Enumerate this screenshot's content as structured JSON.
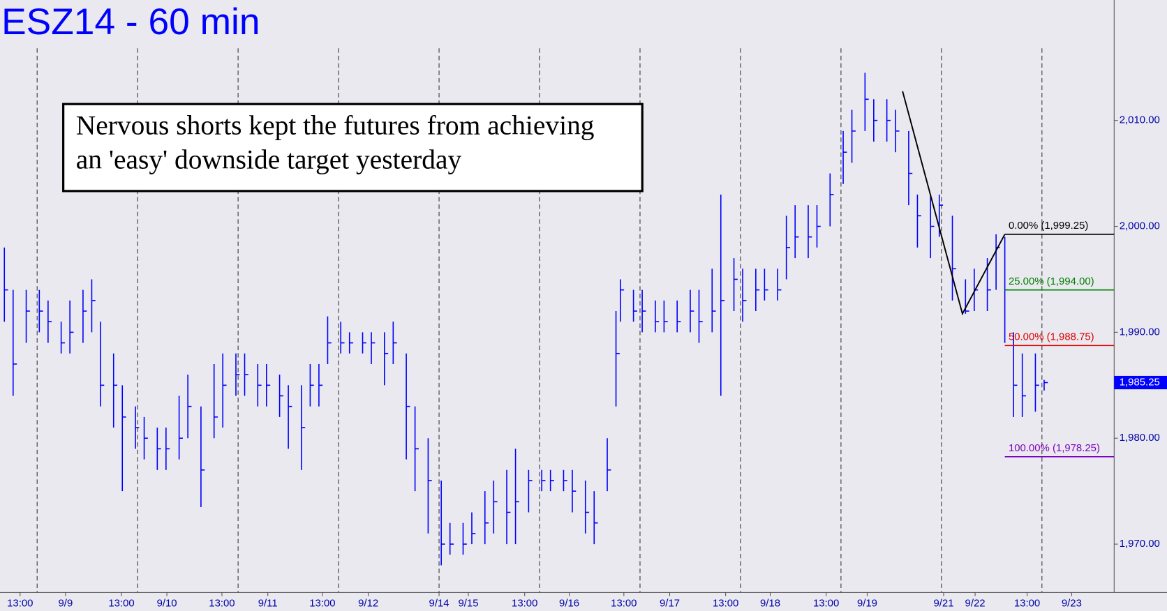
{
  "chart_data": {
    "type": "ohlc",
    "title": "ESZ14 - 60 min",
    "annotation": [
      "Nervous shorts kept the futures from achieving",
      "an 'easy' downside target yesterday"
    ],
    "color": "#0000ff",
    "xlim": [
      0,
      255.03
    ],
    "ylim": [
      1965.44,
      2021.37
    ],
    "yticks": [
      {
        "value": 1970,
        "label": "1,970.00"
      },
      {
        "value": 1980,
        "label": "1,980.00"
      },
      {
        "value": 1990,
        "label": "1,990.00"
      },
      {
        "value": 2000,
        "label": "2,000.00"
      },
      {
        "value": 2010,
        "label": "2,010.00"
      }
    ],
    "xticks": [
      {
        "value": 4.6,
        "label": "13:00"
      },
      {
        "value": 15,
        "label": "9/9"
      },
      {
        "value": 27.8,
        "label": "13:00"
      },
      {
        "value": 38.2,
        "label": "9/10"
      },
      {
        "value": 50.8,
        "label": "13:00"
      },
      {
        "value": 61.3,
        "label": "9/11"
      },
      {
        "value": 73.8,
        "label": "13:00"
      },
      {
        "value": 84.3,
        "label": "9/12"
      },
      {
        "value": 100.5,
        "label": "9/14"
      },
      {
        "value": 107.2,
        "label": "9/15"
      },
      {
        "value": 120.1,
        "label": "13:00"
      },
      {
        "value": 130.3,
        "label": "9/16"
      },
      {
        "value": 142.8,
        "label": "13:00"
      },
      {
        "value": 153.3,
        "label": "9/17"
      },
      {
        "value": 166.1,
        "label": "13:00"
      },
      {
        "value": 176.3,
        "label": "9/18"
      },
      {
        "value": 189.1,
        "label": "13:00"
      },
      {
        "value": 198.5,
        "label": "9/19"
      },
      {
        "value": 216,
        "label": "9/21"
      },
      {
        "value": 223.2,
        "label": "9/22"
      },
      {
        "value": 235.1,
        "label": "13:00"
      },
      {
        "value": 245.3,
        "label": "9/23"
      }
    ],
    "xgrid": [
      8.5,
      31.5,
      54.5,
      77.5,
      100.5,
      123.5,
      146.5,
      169.5,
      192.5,
      215.5,
      238.5
    ],
    "x": [
      1,
      3,
      6,
      9,
      11,
      14,
      16,
      19,
      21,
      23,
      26,
      28,
      31,
      33,
      36,
      38,
      41,
      43,
      46,
      49,
      51,
      54,
      56,
      59,
      61,
      64,
      66,
      69,
      71,
      73,
      75,
      78,
      80,
      83,
      85,
      88,
      90,
      93,
      95,
      98,
      101,
      103,
      106,
      108,
      111,
      113,
      116,
      118,
      121,
      124,
      126,
      129,
      131,
      134,
      136,
      139,
      141,
      142,
      145,
      147,
      150,
      152,
      155,
      158,
      160,
      163,
      165,
      168,
      170,
      173,
      175,
      178,
      180,
      182,
      185,
      187,
      190,
      193,
      195,
      198,
      200,
      203,
      205,
      208,
      210,
      213,
      215,
      218,
      221,
      223,
      226,
      228,
      230,
      232,
      234,
      237,
      239
    ],
    "high": [
      1998,
      1994,
      1994,
      1994,
      1993,
      1991,
      1993,
      1994,
      1995,
      1991,
      1988,
      1985,
      1983,
      1982,
      1981,
      1981,
      1984,
      1986,
      1983,
      1987,
      1988,
      1988,
      1988,
      1987,
      1987,
      1986,
      1985,
      1985,
      1987,
      1987,
      1991.5,
      1991,
      1990,
      1990,
      1990,
      1990,
      1991,
      1988,
      1983,
      1980,
      1976,
      1972,
      1972,
      1973,
      1975,
      1976,
      1977,
      1979,
      1977,
      1977,
      1977,
      1977,
      1977,
      1976,
      1975,
      1980,
      1992,
      1995,
      1994,
      1994,
      1993,
      1993,
      1993,
      1994,
      1994,
      1996,
      2003,
      1997,
      1996,
      1996,
      1996,
      1996,
      2001,
      2002,
      2002,
      2002,
      2005,
      2009,
      2011,
      2014.5,
      2012,
      2012,
      2011,
      2009,
      2003,
      2003,
      2003,
      2001,
      1995,
      1996,
      1997,
      1999.25,
      1999,
      1990,
      1988,
      1988,
      1985.5
    ],
    "low": [
      1991,
      1984,
      1989,
      1990,
      1989,
      1988,
      1988,
      1989,
      1990,
      1983,
      1981,
      1975,
      1979,
      1978,
      1977,
      1977,
      1978,
      1980,
      1973.5,
      1980,
      1981,
      1984,
      1984,
      1983,
      1983,
      1982,
      1979,
      1977,
      1983,
      1983,
      1987,
      1988,
      1988,
      1988,
      1987,
      1985,
      1987,
      1978,
      1975,
      1971,
      1968,
      1969,
      1969,
      1970,
      1970,
      1971,
      1970,
      1970,
      1973,
      1975,
      1975,
      1975,
      1973,
      1971,
      1970,
      1975,
      1983,
      1991,
      1991,
      1990,
      1990,
      1990,
      1990,
      1990,
      1989,
      1990,
      1984,
      1992,
      1991,
      1992,
      1993,
      1993,
      1995,
      1997,
      1997,
      1998,
      2000,
      2004,
      2006,
      2009,
      2008,
      2008,
      2007,
      2002,
      1998,
      1997,
      1999,
      1993,
      1991.75,
      1992,
      1992,
      1994,
      1989,
      1982,
      1982,
      1982.5,
      1984.5
    ],
    "close": [
      1994,
      1987,
      1992,
      1992,
      1991,
      1989,
      1990,
      1992,
      1993,
      1985,
      1985,
      1982,
      1981,
      1980,
      1979,
      1979,
      1980,
      1983,
      1977,
      1982,
      1985,
      1986,
      1986,
      1985,
      1985,
      1984,
      1983,
      1981,
      1985,
      1985,
      1989,
      1989,
      1989,
      1989,
      1989,
      1988,
      1989,
      1983,
      1979,
      1976,
      1970,
      1970,
      1970,
      1971,
      1972,
      1974,
      1973,
      1974,
      1976,
      1976,
      1976,
      1976,
      1975,
      1973,
      1972,
      1977,
      1988,
      1994,
      1992,
      1992,
      1991,
      1991,
      1991,
      1992,
      1991,
      1992,
      1993,
      1995,
      1993,
      1994,
      1994,
      1994,
      1998,
      1999,
      1999,
      2000,
      2003,
      2007,
      2009,
      2012,
      2010,
      2010,
      2009,
      2005,
      2001,
      2000,
      2002,
      1996,
      1992,
      1994,
      1994,
      1998,
      1994,
      1985,
      1984,
      1985,
      1985.25
    ],
    "trend_line": {
      "x": [
        206.6,
        220.3,
        230
      ],
      "y": [
        2012.75,
        1991.75,
        1999.25
      ]
    },
    "fib": {
      "x": 230,
      "levels": [
        {
          "value": 1999.25,
          "label": "0.00% (1,999.25)",
          "color": "#000000"
        },
        {
          "value": 1994,
          "label": "25.00% (1,994.00)",
          "color": "#008000"
        },
        {
          "value": 1988.75,
          "label": "50.00% (1,988.75)",
          "color": "#e00000"
        },
        {
          "value": 1978.25,
          "label": "100.00% (1,978.25)",
          "color": "#8000c0"
        }
      ]
    },
    "last_price": {
      "value": 1985.25,
      "label": "1,985.25"
    }
  }
}
